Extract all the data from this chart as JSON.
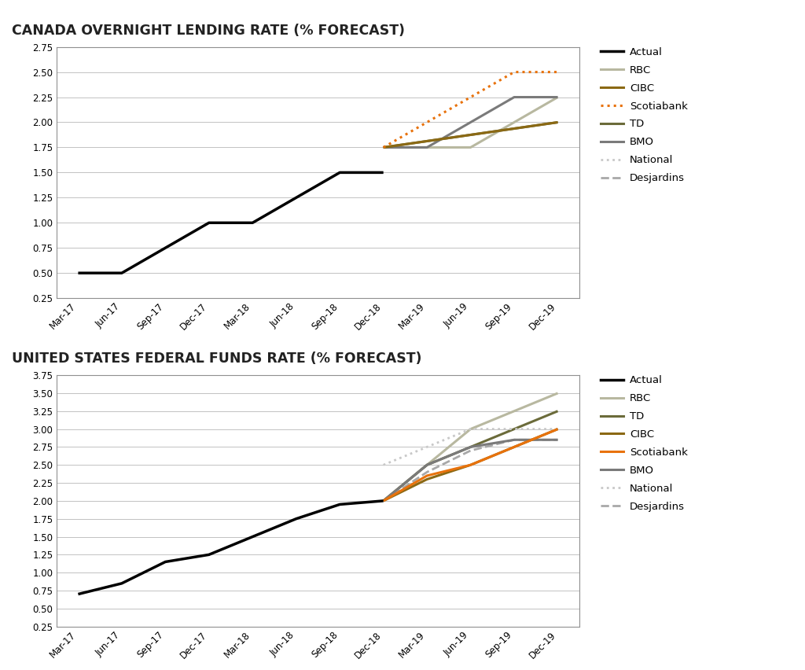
{
  "canada_title": "CANADA OVERNIGHT LENDING RATE (% FORECAST)",
  "us_title": "UNITED STATES FEDERAL FUNDS RATE (% FORECAST)",
  "x_labels": [
    "Mar-17",
    "Jun-17",
    "Sep-17",
    "Dec-17",
    "Mar-18",
    "Jun-18",
    "Sep-18",
    "Dec-18",
    "Mar-19",
    "Jun-19",
    "Sep-19",
    "Dec-19"
  ],
  "canada": {
    "actual": [
      0.5,
      0.5,
      0.75,
      1.0,
      1.0,
      1.25,
      1.5,
      1.5,
      null,
      null,
      null,
      null
    ],
    "rbc": [
      null,
      null,
      null,
      null,
      null,
      null,
      null,
      1.75,
      1.75,
      1.75,
      2.0,
      2.25
    ],
    "cibc": [
      null,
      null,
      null,
      null,
      null,
      null,
      null,
      1.75,
      null,
      null,
      null,
      2.0
    ],
    "scotiabank": [
      null,
      null,
      null,
      null,
      null,
      null,
      null,
      1.75,
      2.0,
      2.25,
      2.5,
      2.5
    ],
    "td": [
      null,
      null,
      null,
      null,
      null,
      null,
      null,
      1.75,
      null,
      null,
      null,
      2.0
    ],
    "bmo": [
      null,
      null,
      null,
      null,
      null,
      null,
      null,
      1.75,
      1.75,
      2.0,
      2.25,
      2.25
    ],
    "national": null,
    "desjardins": null,
    "ylim": [
      0.25,
      2.75
    ],
    "yticks": [
      0.25,
      0.5,
      0.75,
      1.0,
      1.25,
      1.5,
      1.75,
      2.0,
      2.25,
      2.5,
      2.75
    ]
  },
  "us": {
    "actual": [
      0.7,
      0.85,
      1.15,
      1.25,
      1.5,
      1.75,
      1.95,
      2.0,
      null,
      null,
      null,
      null
    ],
    "rbc": [
      null,
      null,
      null,
      null,
      null,
      null,
      null,
      2.0,
      2.5,
      3.0,
      3.25,
      3.5
    ],
    "td": [
      null,
      null,
      null,
      null,
      null,
      null,
      null,
      2.0,
      2.5,
      2.75,
      3.0,
      3.25
    ],
    "cibc": [
      null,
      null,
      null,
      null,
      null,
      null,
      null,
      2.0,
      2.3,
      2.5,
      2.75,
      3.0
    ],
    "scotiabank": [
      null,
      null,
      null,
      null,
      null,
      null,
      null,
      2.0,
      2.35,
      2.5,
      2.75,
      3.0
    ],
    "bmo": [
      null,
      null,
      null,
      null,
      null,
      null,
      null,
      2.0,
      2.5,
      2.75,
      2.85,
      2.85
    ],
    "national": [
      null,
      null,
      null,
      null,
      null,
      null,
      null,
      2.5,
      2.75,
      3.0,
      3.0,
      3.0
    ],
    "desjardins": [
      null,
      null,
      null,
      null,
      null,
      null,
      null,
      2.0,
      2.4,
      2.7,
      2.85,
      2.85
    ],
    "ylim": [
      0.25,
      3.75
    ],
    "yticks": [
      0.25,
      0.5,
      0.75,
      1.0,
      1.25,
      1.5,
      1.75,
      2.0,
      2.25,
      2.5,
      2.75,
      3.0,
      3.25,
      3.5,
      3.75
    ]
  },
  "colors": {
    "actual": "#000000",
    "rbc": "#b8b8a0",
    "cibc": "#8B6914",
    "scotiabank": "#E8720C",
    "td": "#6B6B3A",
    "bmo": "#7a7a7a",
    "national": "#c8c8c8",
    "desjardins": "#a8a8a8"
  },
  "background": "#ffffff",
  "plot_background": "#ffffff",
  "grid_color": "#b8b8b8"
}
